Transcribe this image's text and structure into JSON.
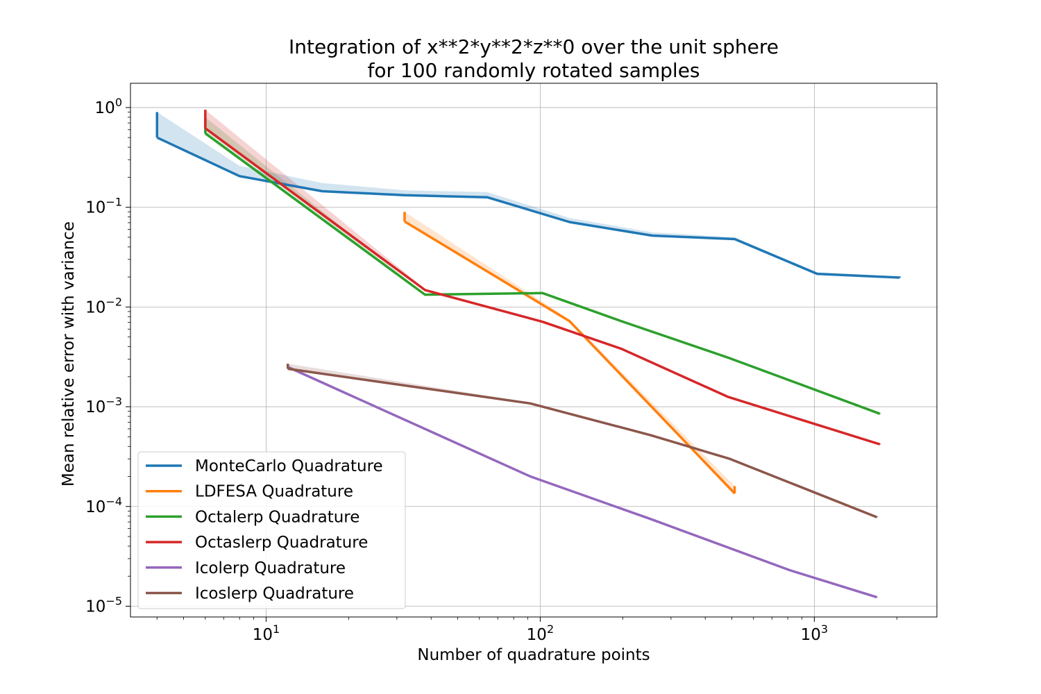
{
  "chart_data": {
    "type": "line",
    "title": [
      "Integration of x**2*y**2*z**0 over the unit sphere",
      "for 100 randomly rotated samples"
    ],
    "xlabel": "Number of quadrature points",
    "ylabel": "Mean relative error with variance",
    "xscale": "log",
    "yscale": "log",
    "xlim": [
      3.2,
      2800
    ],
    "ylim": [
      7.8e-06,
      1.75
    ],
    "grid": true,
    "legend_position": "lower-left",
    "x_ticks": [
      {
        "value": 10,
        "base": "10",
        "exp": "1"
      },
      {
        "value": 100,
        "base": "10",
        "exp": "2"
      },
      {
        "value": 1000,
        "base": "10",
        "exp": "3"
      }
    ],
    "y_ticks": [
      {
        "value": 1,
        "base": "10",
        "exp": "0"
      },
      {
        "value": 0.1,
        "base": "10",
        "exp": "−1"
      },
      {
        "value": 0.01,
        "base": "10",
        "exp": "−2"
      },
      {
        "value": 0.001,
        "base": "10",
        "exp": "−3"
      },
      {
        "value": 0.0001,
        "base": "10",
        "exp": "−4"
      },
      {
        "value": 1e-05,
        "base": "10",
        "exp": "−5"
      }
    ],
    "series": [
      {
        "name": "MonteCarlo Quadrature",
        "color": "#1f77b4",
        "x": [
          4,
          8,
          16,
          32,
          64,
          128,
          256,
          512,
          1024,
          2048
        ],
        "y": [
          0.5,
          0.205,
          0.145,
          0.132,
          0.126,
          0.071,
          0.052,
          0.048,
          0.0215,
          0.0197
        ],
        "upper": [
          0.9,
          0.26,
          0.175,
          0.148,
          0.142,
          0.078,
          0.056,
          0.05,
          0.0223,
          0.0202
        ]
      },
      {
        "name": "LDFESA Quadrature",
        "color": "#ff7f0e",
        "x": [
          32,
          128,
          512
        ],
        "y": [
          0.072,
          0.0072,
          0.000135
        ],
        "upper": [
          0.09,
          0.0075,
          0.00016
        ]
      },
      {
        "name": "Octalerp Quadrature",
        "color": "#2ca02c",
        "x": [
          6,
          38,
          102,
          198,
          486,
          1734
        ],
        "y": [
          0.55,
          0.0133,
          0.0138,
          0.0072,
          0.0031,
          0.00085
        ],
        "upper": [
          0.8,
          0.0135,
          0.014,
          0.0073,
          0.00315,
          0.00086
        ]
      },
      {
        "name": "Octaslerp Quadrature",
        "color": "#d62728",
        "x": [
          6,
          38,
          102,
          198,
          486,
          1734
        ],
        "y": [
          0.62,
          0.0148,
          0.0071,
          0.0038,
          0.00125,
          0.00042
        ],
        "upper": [
          0.95,
          0.0152,
          0.0073,
          0.0039,
          0.00127,
          0.000425
        ]
      },
      {
        "name": "Icolerp Quadrature",
        "color": "#9467bd",
        "x": [
          12,
          92,
          252,
          812,
          1692
        ],
        "y": [
          0.0025,
          0.0002,
          7.5e-05,
          2.3e-05,
          1.23e-05
        ],
        "upper": [
          0.0026,
          0.000202,
          7.6e-05,
          2.32e-05,
          1.24e-05
        ]
      },
      {
        "name": "Icoslerp Quadrature",
        "color": "#8c564b",
        "x": [
          12,
          92,
          252,
          492,
          1692
        ],
        "y": [
          0.0024,
          0.00108,
          0.00052,
          0.0003,
          7.8e-05
        ],
        "upper": [
          0.0027,
          0.0011,
          0.00053,
          0.000303,
          7.9e-05
        ]
      }
    ]
  }
}
